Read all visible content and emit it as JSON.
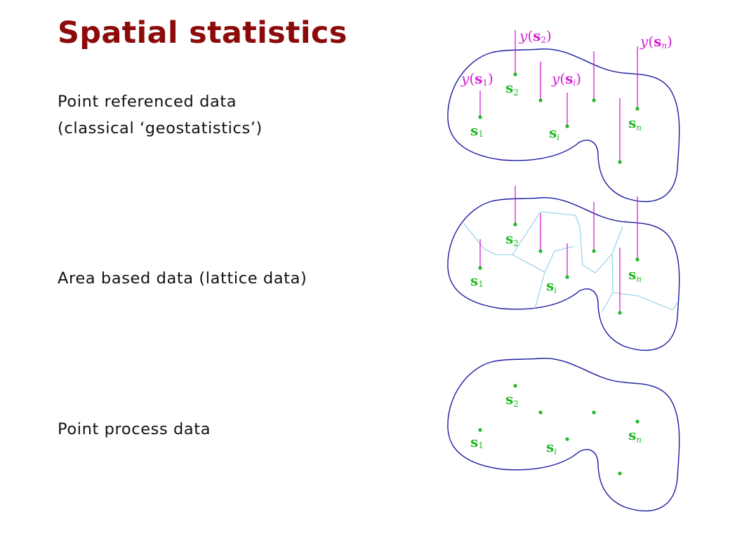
{
  "title": "Spatial statistics",
  "sections": [
    {
      "lines": [
        "Point referenced data",
        "(classical ‘geostatistics’)"
      ]
    },
    {
      "lines": [
        "Area based data (lattice data)"
      ]
    },
    {
      "lines": [
        "Point process data"
      ]
    }
  ],
  "locations": [
    {
      "name": "s",
      "sub": "1"
    },
    {
      "name": "s",
      "sub": "2"
    },
    {
      "name": "s",
      "sub": "i"
    },
    {
      "name": "s",
      "sub": "n"
    }
  ],
  "observations": [
    {
      "fn": "y",
      "arg": "s",
      "sub": "1"
    },
    {
      "fn": "y",
      "arg": "s",
      "sub": "2"
    },
    {
      "fn": "y",
      "arg": "s",
      "sub": "i"
    },
    {
      "fn": "y",
      "arg": "s",
      "sub": "n"
    }
  ],
  "colors": {
    "title": "#8b0a0a",
    "region_outline": "#1a1aa0",
    "lattice_lines": "#8ccde8",
    "observation": "#d61ed6",
    "location": "#22b822"
  }
}
